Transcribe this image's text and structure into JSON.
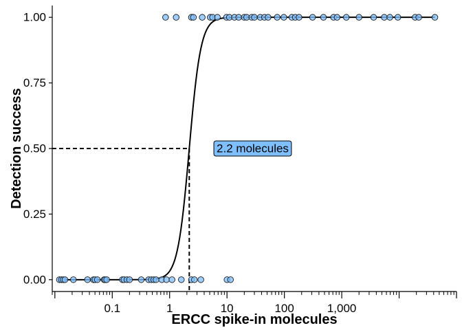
{
  "chart_data": {
    "type": "scatter",
    "xlabel": "ERCC spike-in molecules",
    "ylabel": "Detection success",
    "x_scale": "log10",
    "xlim": [
      0.009,
      100000
    ],
    "ylim": [
      -0.045,
      1.045
    ],
    "x_ticks": [
      {
        "value": 0.1,
        "label": "0.1"
      },
      {
        "value": 1,
        "label": "1"
      },
      {
        "value": 10,
        "label": "10"
      },
      {
        "value": 100,
        "label": "100"
      },
      {
        "value": 1000,
        "label": "1,000"
      }
    ],
    "y_ticks": [
      {
        "value": 0,
        "label": "0.00"
      },
      {
        "value": 0.25,
        "label": "0.25"
      },
      {
        "value": 0.5,
        "label": "0.50"
      },
      {
        "value": 0.75,
        "label": "0.75"
      },
      {
        "value": 1,
        "label": "1.00"
      }
    ],
    "grid": false,
    "point_color": "#7fbfff",
    "series": [
      {
        "values": [
          {
            "x": 0.012,
            "y": 0
          },
          {
            "x": 0.013,
            "y": 0
          },
          {
            "x": 0.014,
            "y": 0
          },
          {
            "x": 0.015,
            "y": 0
          },
          {
            "x": 0.021,
            "y": 0
          },
          {
            "x": 0.037,
            "y": 0
          },
          {
            "x": 0.047,
            "y": 0
          },
          {
            "x": 0.05,
            "y": 0
          },
          {
            "x": 0.055,
            "y": 0
          },
          {
            "x": 0.072,
            "y": 0
          },
          {
            "x": 0.075,
            "y": 0
          },
          {
            "x": 0.08,
            "y": 0
          },
          {
            "x": 0.15,
            "y": 0
          },
          {
            "x": 0.16,
            "y": 0
          },
          {
            "x": 0.18,
            "y": 0
          },
          {
            "x": 0.2,
            "y": 0
          },
          {
            "x": 0.32,
            "y": 0
          },
          {
            "x": 0.43,
            "y": 0
          },
          {
            "x": 0.48,
            "y": 0
          },
          {
            "x": 0.53,
            "y": 0
          },
          {
            "x": 0.58,
            "y": 0
          },
          {
            "x": 0.73,
            "y": 0
          },
          {
            "x": 0.88,
            "y": 0
          },
          {
            "x": 1.1,
            "y": 0
          },
          {
            "x": 1.6,
            "y": 0
          },
          {
            "x": 2.4,
            "y": 0
          },
          {
            "x": 2.7,
            "y": 0
          },
          {
            "x": 3.5,
            "y": 0
          },
          {
            "x": 10,
            "y": 0
          },
          {
            "x": 11.5,
            "y": 0
          },
          {
            "x": 0.85,
            "y": 1
          },
          {
            "x": 1.3,
            "y": 1
          },
          {
            "x": 2.4,
            "y": 1
          },
          {
            "x": 2.6,
            "y": 1
          },
          {
            "x": 3.7,
            "y": 1
          },
          {
            "x": 5.1,
            "y": 1
          },
          {
            "x": 5.6,
            "y": 1
          },
          {
            "x": 6.8,
            "y": 1
          },
          {
            "x": 9.8,
            "y": 1
          },
          {
            "x": 11,
            "y": 1
          },
          {
            "x": 13.5,
            "y": 1
          },
          {
            "x": 16,
            "y": 1
          },
          {
            "x": 20,
            "y": 1
          },
          {
            "x": 22,
            "y": 1
          },
          {
            "x": 27,
            "y": 1
          },
          {
            "x": 30,
            "y": 1
          },
          {
            "x": 38,
            "y": 1
          },
          {
            "x": 45,
            "y": 1
          },
          {
            "x": 52,
            "y": 1
          },
          {
            "x": 75,
            "y": 1
          },
          {
            "x": 98,
            "y": 1
          },
          {
            "x": 135,
            "y": 1
          },
          {
            "x": 155,
            "y": 1
          },
          {
            "x": 180,
            "y": 1
          },
          {
            "x": 310,
            "y": 1
          },
          {
            "x": 480,
            "y": 1
          },
          {
            "x": 720,
            "y": 1
          },
          {
            "x": 830,
            "y": 1
          },
          {
            "x": 1200,
            "y": 1
          },
          {
            "x": 2000,
            "y": 1
          },
          {
            "x": 3600,
            "y": 1
          },
          {
            "x": 5500,
            "y": 1
          },
          {
            "x": 6900,
            "y": 1
          },
          {
            "x": 9500,
            "y": 1
          },
          {
            "x": 19000,
            "y": 1
          },
          {
            "x": 22000,
            "y": 1
          },
          {
            "x": 42000,
            "y": 1
          }
        ]
      }
    ],
    "fit_curve": {
      "type": "logistic",
      "midpoint": 2.2,
      "slope_per_log10": 4.3,
      "x_range": [
        0.013,
        42000
      ]
    },
    "annotations": [
      {
        "text": "2.2 molecules",
        "x": 2.2,
        "y": 0.5,
        "label_x": 28,
        "label_y": 0.5,
        "fill": "#7fbfff"
      }
    ]
  }
}
